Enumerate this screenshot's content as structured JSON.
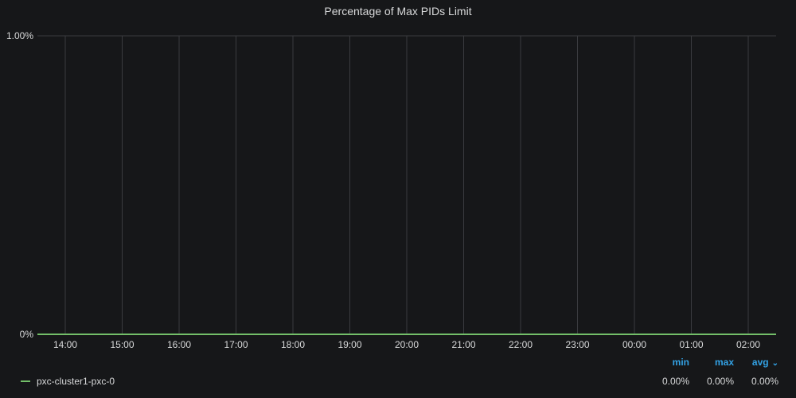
{
  "chart_data": {
    "type": "line",
    "title": "Percentage of Max PIDs Limit",
    "x": [
      "14:00",
      "15:00",
      "16:00",
      "17:00",
      "18:00",
      "19:00",
      "20:00",
      "21:00",
      "22:00",
      "23:00",
      "00:00",
      "01:00",
      "02:00"
    ],
    "x_tick_labels": [
      "14:00",
      "15:00",
      "16:00",
      "17:00",
      "18:00",
      "19:00",
      "20:00",
      "21:00",
      "22:00",
      "23:00",
      "00:00",
      "01:00",
      "02:00"
    ],
    "y_tick_labels": [
      "0%",
      "1.00%"
    ],
    "ylim": [
      0,
      1.0
    ],
    "series": [
      {
        "name": "pxc-cluster1-pxc-0",
        "color": "#73bf69",
        "values": [
          0,
          0,
          0,
          0,
          0,
          0,
          0,
          0,
          0,
          0,
          0,
          0,
          0
        ]
      }
    ],
    "grid": true,
    "legend_placement": "bottom"
  },
  "legend": {
    "headers": {
      "min": "min",
      "max": "max",
      "avg": "avg"
    },
    "sort_icon": "chevron-down-icon",
    "rows": [
      {
        "name": "pxc-cluster1-pxc-0",
        "min": "0.00%",
        "max": "0.00%",
        "avg": "0.00%"
      }
    ]
  },
  "colors": {
    "background": "#161719",
    "grid": "#3a3b3f",
    "text": "#d8d9da",
    "link": "#33a2e5",
    "series": "#73bf69"
  }
}
